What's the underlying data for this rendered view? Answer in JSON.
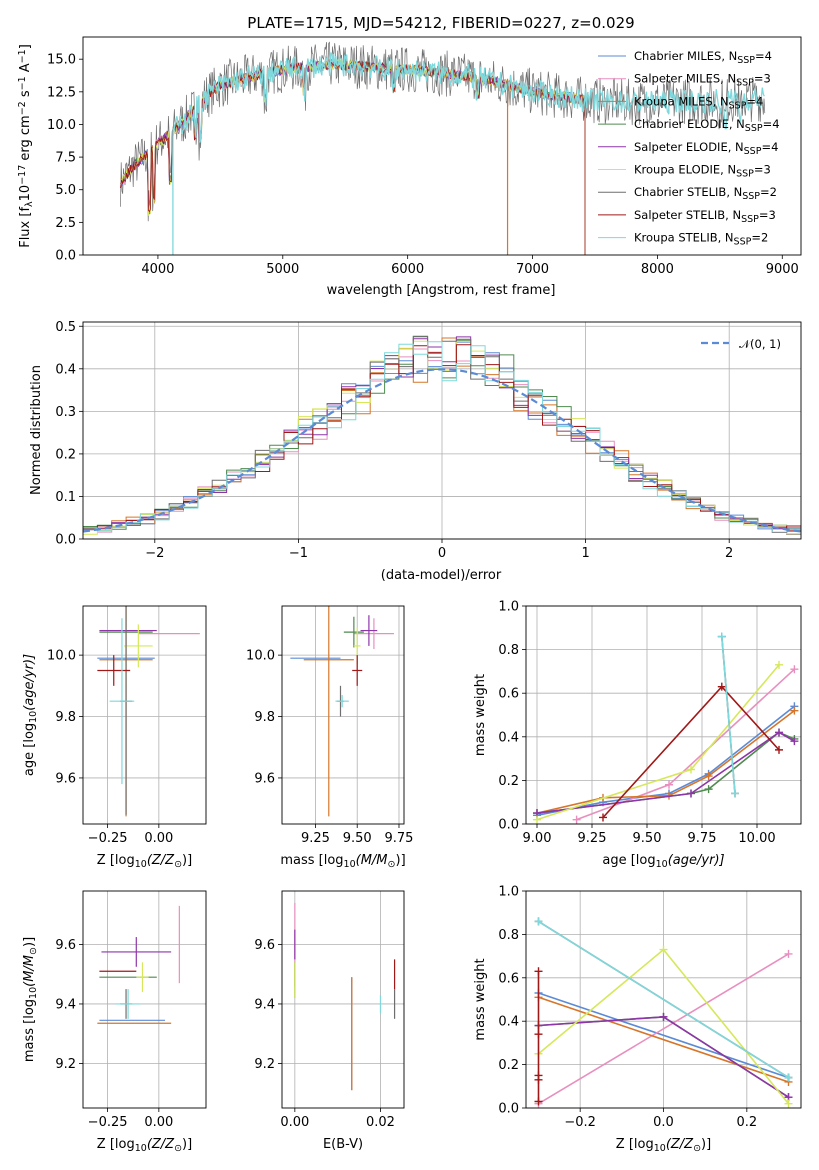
{
  "colors": {
    "chabrier_miles": "#5b8bd6",
    "salpeter_miles": "#e88fbf",
    "kroupa_miles": "#d6762a",
    "chabrier_elodie": "#4f8a4f",
    "salpeter_elodie": "#8e35a8",
    "kroupa_elodie": "#d6e85a",
    "chabrier_stelib": "#6e6e6e",
    "salpeter_stelib": "#a01818",
    "kroupa_stelib": "#7fd8dc"
  },
  "chart_data": [
    {
      "type": "line",
      "title": "PLATE=1715, MJD=54212, FIBERID=0227, z=0.029",
      "xlabel": "wavelength [Angstrom, rest frame]",
      "ylabel": "Flux [f",
      "ylabel_sub": "λ",
      "ylabel_rest": "10",
      "ylabel_sup1": "−17",
      "ylabel_rest2": " erg cm",
      "ylabel_sup2": "−2",
      "ylabel_rest3": " s",
      "ylabel_sup3": "−1",
      "ylabel_rest4": " A",
      "ylabel_sup4": "−1",
      "ylabel_end": "]",
      "xlim": [
        3400,
        9150
      ],
      "ylim": [
        0,
        16.7
      ],
      "xticks": [
        "4000",
        "5000",
        "6000",
        "7000",
        "8000",
        "9000"
      ],
      "xtick_values": [
        4000,
        5000,
        6000,
        7000,
        8000,
        9000
      ],
      "yticks": [
        "0.0",
        "2.5",
        "5.0",
        "7.5",
        "10.0",
        "12.5",
        "15.0"
      ],
      "ytick_values": [
        0,
        2.5,
        5,
        7.5,
        10,
        12.5,
        15
      ],
      "legend_placement": "top-right",
      "legend": [
        {
          "name": "Chabrier MILES, N",
          "sub": "SSP",
          "tail": "=4",
          "color_key": "chabrier_miles"
        },
        {
          "name": "Salpeter MILES, N",
          "sub": "SSP",
          "tail": "=3",
          "color_key": "salpeter_miles"
        },
        {
          "name": "Kroupa MILES, N",
          "sub": "SSP",
          "tail": "=4",
          "color_key": "kroupa_miles"
        },
        {
          "name": "Chabrier ELODIE, N",
          "sub": "SSP",
          "tail": "=4",
          "color_key": "chabrier_elodie"
        },
        {
          "name": "Salpeter ELODIE, N",
          "sub": "SSP",
          "tail": "=4",
          "color_key": "salpeter_elodie"
        },
        {
          "name": "Kroupa ELODIE, N",
          "sub": "SSP",
          "tail": "=3",
          "color_key": "kroupa_elodie"
        },
        {
          "name": "Chabrier STELIB, N",
          "sub": "SSP",
          "tail": "=2",
          "color_key": "chabrier_stelib"
        },
        {
          "name": "Salpeter STELIB, N",
          "sub": "SSP",
          "tail": "=3",
          "color_key": "salpeter_stelib"
        },
        {
          "name": "Kroupa STELIB, N",
          "sub": "SSP",
          "tail": "=2",
          "color_key": "kroupa_stelib"
        }
      ],
      "continuum_x": [
        3700,
        3800,
        3900,
        4000,
        4100,
        4200,
        4300,
        4400,
        4500,
        4600,
        4800,
        5000,
        5200,
        5400,
        5600,
        5800,
        6000,
        6200,
        6400,
        6600,
        6800,
        7000,
        7200,
        7400,
        7600,
        7800,
        8000,
        8200,
        8400,
        8600,
        8800
      ],
      "continuum_y": [
        5.5,
        6.8,
        7.6,
        8.6,
        9.3,
        10.2,
        11.2,
        12.3,
        13.0,
        13.3,
        13.8,
        14.2,
        14.4,
        14.6,
        14.5,
        14.3,
        14.2,
        14.0,
        13.8,
        13.5,
        13.0,
        12.5,
        12.2,
        11.9,
        11.8,
        11.7,
        11.7,
        11.8,
        11.8,
        11.9,
        12.0
      ],
      "model_ranges": {
        "kroupa_stelib": [
          4120,
          8860
        ],
        "chabrier_stelib": [
          3700,
          8860
        ],
        "salpeter_miles": [
          3700,
          7420
        ],
        "kroupa_miles": [
          3700,
          7420
        ],
        "others": [
          3700,
          7420
        ]
      }
    },
    {
      "type": "step",
      "xlabel": "(data-model)/error",
      "ylabel": "Normed distribution",
      "xlim": [
        -2.5,
        2.5
      ],
      "ylim": [
        0,
        0.51
      ],
      "xticks": [
        "−2",
        "−1",
        "0",
        "1",
        "2"
      ],
      "xtick_values": [
        -2,
        -1,
        0,
        1,
        2
      ],
      "yticks": [
        "0.0",
        "0.1",
        "0.2",
        "0.3",
        "0.4",
        "0.5"
      ],
      "ytick_values": [
        0,
        0.1,
        0.2,
        0.3,
        0.4,
        0.5
      ],
      "grid": true,
      "legend_placement": "top-right",
      "reference_curve": {
        "name": "𝒩(0, 1)",
        "color": "#5b8bd6",
        "style": "dashed"
      },
      "bin_width": 0.1
    },
    {
      "type": "errorbar",
      "xlabel": "Z [log",
      "xlabel_sub": "10",
      "xlabel_rest": "(Z/Z",
      "xlabel_sub2": "⊙",
      "xlabel_end": ")]",
      "ylabel": "age  [log",
      "ylabel_sub": "10",
      "ylabel_rest": "(age/yr)]",
      "xlim": [
        -0.37,
        0.23
      ],
      "ylim": [
        9.45,
        10.16
      ],
      "xticks": [
        "−0.25",
        "0.00"
      ],
      "xtick_values": [
        -0.25,
        0
      ],
      "yticks": [
        "9.6",
        "9.8",
        "10.0"
      ],
      "ytick_values": [
        9.6,
        9.8,
        10.0
      ],
      "points": [
        {
          "c": "chabrier_miles",
          "x": -0.16,
          "xe": 0.14,
          "y": 9.99,
          "ye": 0.0
        },
        {
          "c": "salpeter_miles",
          "x": 0.05,
          "xe": 0.15,
          "y": 10.07,
          "ye": 0.0
        },
        {
          "c": "kroupa_miles",
          "x": -0.16,
          "xe": 0.13,
          "y": 9.985,
          "ye": 0.51
        },
        {
          "c": "chabrier_elodie",
          "x": -0.16,
          "xe": 0.13,
          "y": 10.075,
          "ye": 0.0
        },
        {
          "c": "salpeter_elodie",
          "x": -0.15,
          "xe": 0.14,
          "y": 10.08,
          "ye": 0.0
        },
        {
          "c": "kroupa_elodie",
          "x": -0.1,
          "xe": 0.07,
          "y": 10.03,
          "ye": 0.07
        },
        {
          "c": "chabrier_stelib",
          "x": -0.16,
          "xe": 0.03,
          "y": 9.85,
          "ye": 0.37
        },
        {
          "c": "salpeter_stelib",
          "x": -0.22,
          "xe": 0.08,
          "y": 9.95,
          "ye": 0.05
        },
        {
          "c": "kroupa_stelib",
          "x": -0.18,
          "xe": 0.06,
          "y": 9.85,
          "ye": 0.27
        }
      ]
    },
    {
      "type": "errorbar",
      "xlabel": "mass [log",
      "xlabel_sub": "10",
      "xlabel_rest": "(M/M",
      "xlabel_sub2": "⊙",
      "xlabel_end": ")]",
      "xlim": [
        9.05,
        9.78
      ],
      "ylim": [
        9.45,
        10.16
      ],
      "xticks": [
        "9.25",
        "9.50",
        "9.75"
      ],
      "xtick_values": [
        9.25,
        9.5,
        9.75
      ],
      "yticks": [
        "9.6",
        "9.8",
        "10.0"
      ],
      "ytick_values": [
        9.6,
        9.8,
        10.0
      ],
      "points": [
        {
          "c": "chabrier_miles",
          "x": 9.25,
          "xe": 0.15,
          "y": 9.99,
          "ye": 0.0
        },
        {
          "c": "salpeter_miles",
          "x": 9.6,
          "xe": 0.12,
          "y": 10.07,
          "ye": 0.05
        },
        {
          "c": "kroupa_miles",
          "x": 9.33,
          "xe": 0.15,
          "y": 9.985,
          "ye": 0.51
        },
        {
          "c": "chabrier_elodie",
          "x": 9.48,
          "xe": 0.06,
          "y": 10.075,
          "ye": 0.05
        },
        {
          "c": "salpeter_elodie",
          "x": 9.57,
          "xe": 0.05,
          "y": 10.08,
          "ye": 0.05
        },
        {
          "c": "kroupa_elodie",
          "x": 9.5,
          "xe": 0.02,
          "y": 10.03,
          "ye": 0.06
        },
        {
          "c": "chabrier_stelib",
          "x": 9.4,
          "xe": 0.02,
          "y": 9.85,
          "ye": 0.05
        },
        {
          "c": "salpeter_stelib",
          "x": 9.5,
          "xe": 0.03,
          "y": 9.95,
          "ye": 0.05
        },
        {
          "c": "kroupa_stelib",
          "x": 9.41,
          "xe": 0.04,
          "y": 9.85,
          "ye": 0.02
        }
      ]
    },
    {
      "type": "line",
      "xlabel": "age  [log",
      "xlabel_sub": "10",
      "xlabel_rest": "(age/yr)]",
      "ylabel": "mass weight",
      "xlim": [
        8.95,
        10.2
      ],
      "ylim": [
        0,
        1.0
      ],
      "xticks": [
        "9.00",
        "9.25",
        "9.50",
        "9.75",
        "10.00"
      ],
      "xtick_values": [
        9,
        9.25,
        9.5,
        9.75,
        10
      ],
      "yticks": [
        "0.0",
        "0.2",
        "0.4",
        "0.6",
        "0.8",
        "1.0"
      ],
      "ytick_values": [
        0,
        0.2,
        0.4,
        0.6,
        0.8,
        1.0
      ],
      "grid": true,
      "series": [
        {
          "c": "chabrier_miles",
          "x": [
            9.0,
            9.3,
            9.6,
            9.78,
            10.17
          ],
          "y": [
            0.04,
            0.1,
            0.14,
            0.23,
            0.54
          ]
        },
        {
          "c": "salpeter_miles",
          "x": [
            9.18,
            9.6,
            10.17
          ],
          "y": [
            0.02,
            0.18,
            0.71
          ]
        },
        {
          "c": "kroupa_miles",
          "x": [
            9.0,
            9.3,
            9.6,
            9.78,
            10.17
          ],
          "y": [
            0.05,
            0.12,
            0.13,
            0.22,
            0.52
          ]
        },
        {
          "c": "chabrier_elodie",
          "x": [
            9.0,
            9.7,
            9.78,
            10.1,
            10.17
          ],
          "y": [
            0.05,
            0.14,
            0.16,
            0.42,
            0.39
          ]
        },
        {
          "c": "salpeter_elodie",
          "x": [
            9.0,
            9.7,
            10.1,
            10.17
          ],
          "y": [
            0.05,
            0.14,
            0.42,
            0.38
          ]
        },
        {
          "c": "kroupa_elodie",
          "x": [
            9.0,
            9.7,
            10.1
          ],
          "y": [
            0.02,
            0.25,
            0.73
          ]
        },
        {
          "c": "chabrier_stelib",
          "x": [
            9.84,
            9.9
          ],
          "y": [
            0.86,
            0.14
          ]
        },
        {
          "c": "salpeter_stelib",
          "x": [
            9.3,
            9.84,
            10.1
          ],
          "y": [
            0.03,
            0.63,
            0.34
          ]
        },
        {
          "c": "kroupa_stelib",
          "x": [
            9.84,
            9.9
          ],
          "y": [
            0.86,
            0.14
          ]
        }
      ]
    },
    {
      "type": "errorbar",
      "xlabel": "Z [log",
      "xlabel_sub": "10",
      "xlabel_rest": "(Z/Z",
      "xlabel_sub2": "⊙",
      "xlabel_end": ")]",
      "ylabel": "mass [log",
      "ylabel_sub": "10",
      "ylabel_rest": "(M/M",
      "ylabel_sub2": "⊙",
      "ylabel_end": ")]",
      "xlim": [
        -0.37,
        0.23
      ],
      "ylim": [
        9.05,
        9.78
      ],
      "xticks": [
        "−0.25",
        "0.00"
      ],
      "xtick_values": [
        -0.25,
        0
      ],
      "yticks": [
        "9.2",
        "9.4",
        "9.6"
      ],
      "ytick_values": [
        9.2,
        9.4,
        9.6
      ],
      "points": [
        {
          "c": "chabrier_miles",
          "x": -0.13,
          "xe": 0.16,
          "y": 9.345,
          "ye": 0.0
        },
        {
          "c": "salpeter_miles",
          "x": 0.1,
          "xe": 0.0,
          "y": 9.6,
          "ye": 0.13
        },
        {
          "c": "kroupa_miles",
          "x": -0.12,
          "xe": 0.18,
          "y": 9.335,
          "ye": 0.0
        },
        {
          "c": "chabrier_elodie",
          "x": -0.15,
          "xe": 0.14,
          "y": 9.49,
          "ye": 0.0
        },
        {
          "c": "salpeter_elodie",
          "x": -0.11,
          "xe": 0.17,
          "y": 9.575,
          "ye": 0.05
        },
        {
          "c": "kroupa_elodie",
          "x": -0.08,
          "xe": 0.03,
          "y": 9.49,
          "ye": 0.05
        },
        {
          "c": "chabrier_stelib",
          "x": -0.16,
          "xe": 0.03,
          "y": 9.4,
          "ye": 0.05
        },
        {
          "c": "salpeter_stelib",
          "x": -0.2,
          "xe": 0.09,
          "y": 9.51,
          "ye": 0.0
        },
        {
          "c": "kroupa_stelib",
          "x": -0.15,
          "xe": 0.06,
          "y": 9.4,
          "ye": 0.05
        }
      ]
    },
    {
      "type": "errorbar",
      "xlabel": "E(B-V)",
      "xlim": [
        -0.003,
        0.0255
      ],
      "ylim": [
        9.05,
        9.78
      ],
      "xticks": [
        "0.00",
        "0.02"
      ],
      "xtick_values": [
        0,
        0.02
      ],
      "yticks": [
        "9.2",
        "9.4",
        "9.6"
      ],
      "ytick_values": [
        9.2,
        9.4,
        9.6
      ],
      "points": [
        {
          "c": "chabrier_miles",
          "x": 0.0133,
          "xe": 0,
          "y": 9.3,
          "ye": 0.19
        },
        {
          "c": "salpeter_miles",
          "x": 0.0,
          "xe": 0,
          "y": 9.6,
          "ye": 0.14
        },
        {
          "c": "kroupa_miles",
          "x": 0.0133,
          "xe": 0,
          "y": 9.3,
          "ye": 0.19
        },
        {
          "c": "chabrier_elodie",
          "x": 0.0,
          "xe": 0,
          "y": 9.48,
          "ye": 0.06
        },
        {
          "c": "salpeter_elodie",
          "x": 0.0,
          "xe": 0,
          "y": 9.6,
          "ye": 0.05
        },
        {
          "c": "kroupa_elodie",
          "x": 0.0,
          "xe": 0,
          "y": 9.48,
          "ye": 0.06
        },
        {
          "c": "chabrier_stelib",
          "x": 0.0233,
          "xe": 0,
          "y": 9.4,
          "ye": 0.05
        },
        {
          "c": "salpeter_stelib",
          "x": 0.0233,
          "xe": 0,
          "y": 9.5,
          "ye": 0.05
        },
        {
          "c": "kroupa_stelib",
          "x": 0.02,
          "xe": 0,
          "y": 9.4,
          "ye": 0.03
        }
      ]
    },
    {
      "type": "line",
      "xlabel": "Z [log",
      "xlabel_sub": "10",
      "xlabel_rest": "(Z/Z",
      "xlabel_sub2": "⊙",
      "xlabel_end": ")]",
      "ylabel": "mass weight",
      "xlim": [
        -0.33,
        0.33
      ],
      "ylim": [
        0,
        1.0
      ],
      "xticks": [
        "−0.2",
        "0.0",
        "0.2"
      ],
      "xtick_values": [
        -0.2,
        0,
        0.2
      ],
      "yticks": [
        "0.0",
        "0.2",
        "0.4",
        "0.6",
        "0.8",
        "1.0"
      ],
      "ytick_values": [
        0,
        0.2,
        0.4,
        0.6,
        0.8,
        1.0
      ],
      "grid": true,
      "series": [
        {
          "c": "chabrier_miles",
          "x": [
            -0.3,
            0.3
          ],
          "y": [
            0.53,
            0.14
          ]
        },
        {
          "c": "salpeter_miles",
          "x": [
            -0.3,
            0.3
          ],
          "y": [
            0.02,
            0.71
          ]
        },
        {
          "c": "kroupa_miles",
          "x": [
            -0.3,
            0.3
          ],
          "y": [
            0.51,
            0.12
          ]
        },
        {
          "c": "chabrier_elodie",
          "x": [
            -0.3,
            0.0,
            0.3
          ],
          "y": [
            0.38,
            0.42,
            0.05
          ]
        },
        {
          "c": "salpeter_elodie",
          "x": [
            -0.3,
            0.0,
            0.3
          ],
          "y": [
            0.38,
            0.42,
            0.05
          ]
        },
        {
          "c": "kroupa_elodie",
          "x": [
            -0.3,
            0.0,
            0.3
          ],
          "y": [
            0.25,
            0.73,
            0.02
          ]
        },
        {
          "c": "chabrier_stelib",
          "x": [
            -0.3,
            0.3
          ],
          "y": [
            0.86,
            0.14
          ]
        },
        {
          "c": "salpeter_stelib",
          "x": [
            -0.3,
            -0.3,
            -0.3,
            -0.3,
            -0.3
          ],
          "y": [
            0.63,
            0.34,
            0.15,
            0.13,
            0.03
          ]
        },
        {
          "c": "kroupa_stelib",
          "x": [
            -0.3,
            0.3
          ],
          "y": [
            0.86,
            0.14
          ]
        }
      ]
    }
  ]
}
